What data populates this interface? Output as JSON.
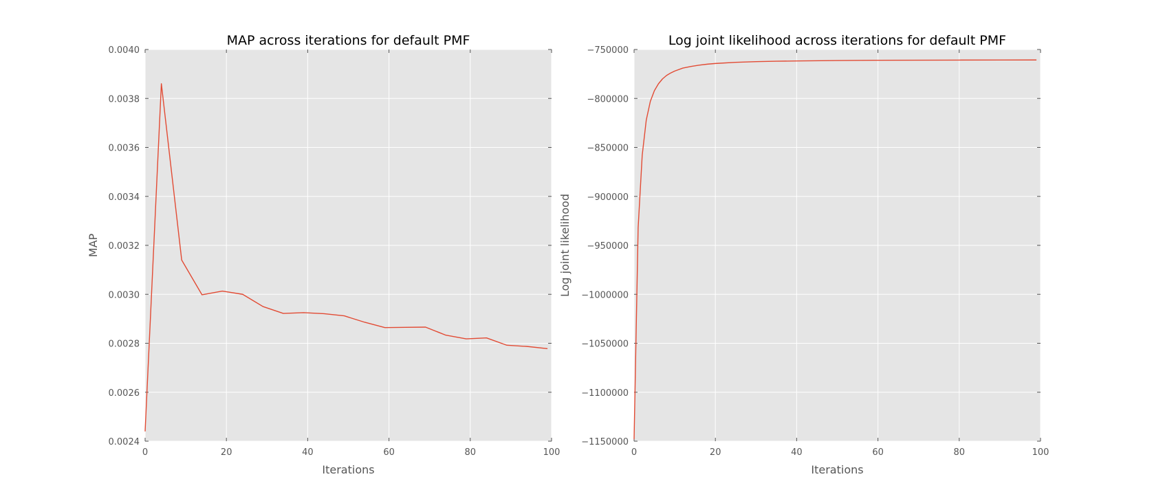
{
  "chart_data": [
    {
      "type": "line",
      "title": "MAP across iterations for default PMF",
      "xlabel": "Iterations",
      "ylabel": "MAP",
      "xlim": [
        0,
        100
      ],
      "ylim": [
        0.0024,
        0.004
      ],
      "xticks": [
        0,
        20,
        40,
        60,
        80,
        100
      ],
      "xtick_labels": [
        "0",
        "20",
        "40",
        "60",
        "80",
        "100"
      ],
      "yticks": [
        0.0024,
        0.0026,
        0.0028,
        0.003,
        0.0032,
        0.0034,
        0.0036,
        0.0038,
        0.004
      ],
      "ytick_labels": [
        "0.0024",
        "0.0026",
        "0.0028",
        "0.0030",
        "0.0032",
        "0.0034",
        "0.0036",
        "0.0038",
        "0.0040"
      ],
      "grid": true,
      "line_color": "#e24a33",
      "series": [
        {
          "x": [
            0,
            4,
            9,
            14,
            19,
            24,
            29,
            34,
            39,
            44,
            49,
            54,
            59,
            64,
            69,
            74,
            79,
            84,
            89,
            94,
            99
          ],
          "y": [
            0.00244,
            0.00386,
            0.00314,
            0.002998,
            0.003013,
            0.003,
            0.00295,
            0.002922,
            0.002925,
            0.002921,
            0.002912,
            0.002886,
            0.002864,
            0.002865,
            0.002866,
            0.002833,
            0.002818,
            0.002822,
            0.002792,
            0.002787,
            0.002778
          ]
        }
      ]
    },
    {
      "type": "line",
      "title": "Log joint likelihood across iterations for default PMF",
      "xlabel": "Iterations",
      "ylabel": "Log joint likelihood",
      "xlim": [
        0,
        100
      ],
      "ylim": [
        -1150000,
        -750000
      ],
      "xticks": [
        0,
        20,
        40,
        60,
        80,
        100
      ],
      "xtick_labels": [
        "0",
        "20",
        "40",
        "60",
        "80",
        "100"
      ],
      "yticks": [
        -1150000,
        -1100000,
        -1050000,
        -1000000,
        -950000,
        -900000,
        -850000,
        -800000,
        -750000
      ],
      "ytick_labels": [
        "−1150000",
        "−1100000",
        "−1050000",
        "−1000000",
        "−950000",
        "−900000",
        "−850000",
        "−800000",
        "−750000"
      ],
      "grid": true,
      "line_color": "#e24a33",
      "series": [
        {
          "x": [
            0,
            1,
            2,
            3,
            4,
            5,
            6,
            7,
            8,
            9,
            10,
            12,
            14,
            16,
            18,
            20,
            25,
            30,
            35,
            40,
            50,
            60,
            70,
            80,
            90,
            99
          ],
          "y": [
            -1148000,
            -932000,
            -858000,
            -822000,
            -803000,
            -792000,
            -785000,
            -780000,
            -776500,
            -774000,
            -772000,
            -769000,
            -767300,
            -766000,
            -765000,
            -764300,
            -763100,
            -762400,
            -762000,
            -761700,
            -761300,
            -761000,
            -760900,
            -760800,
            -760750,
            -760700
          ]
        }
      ]
    }
  ]
}
